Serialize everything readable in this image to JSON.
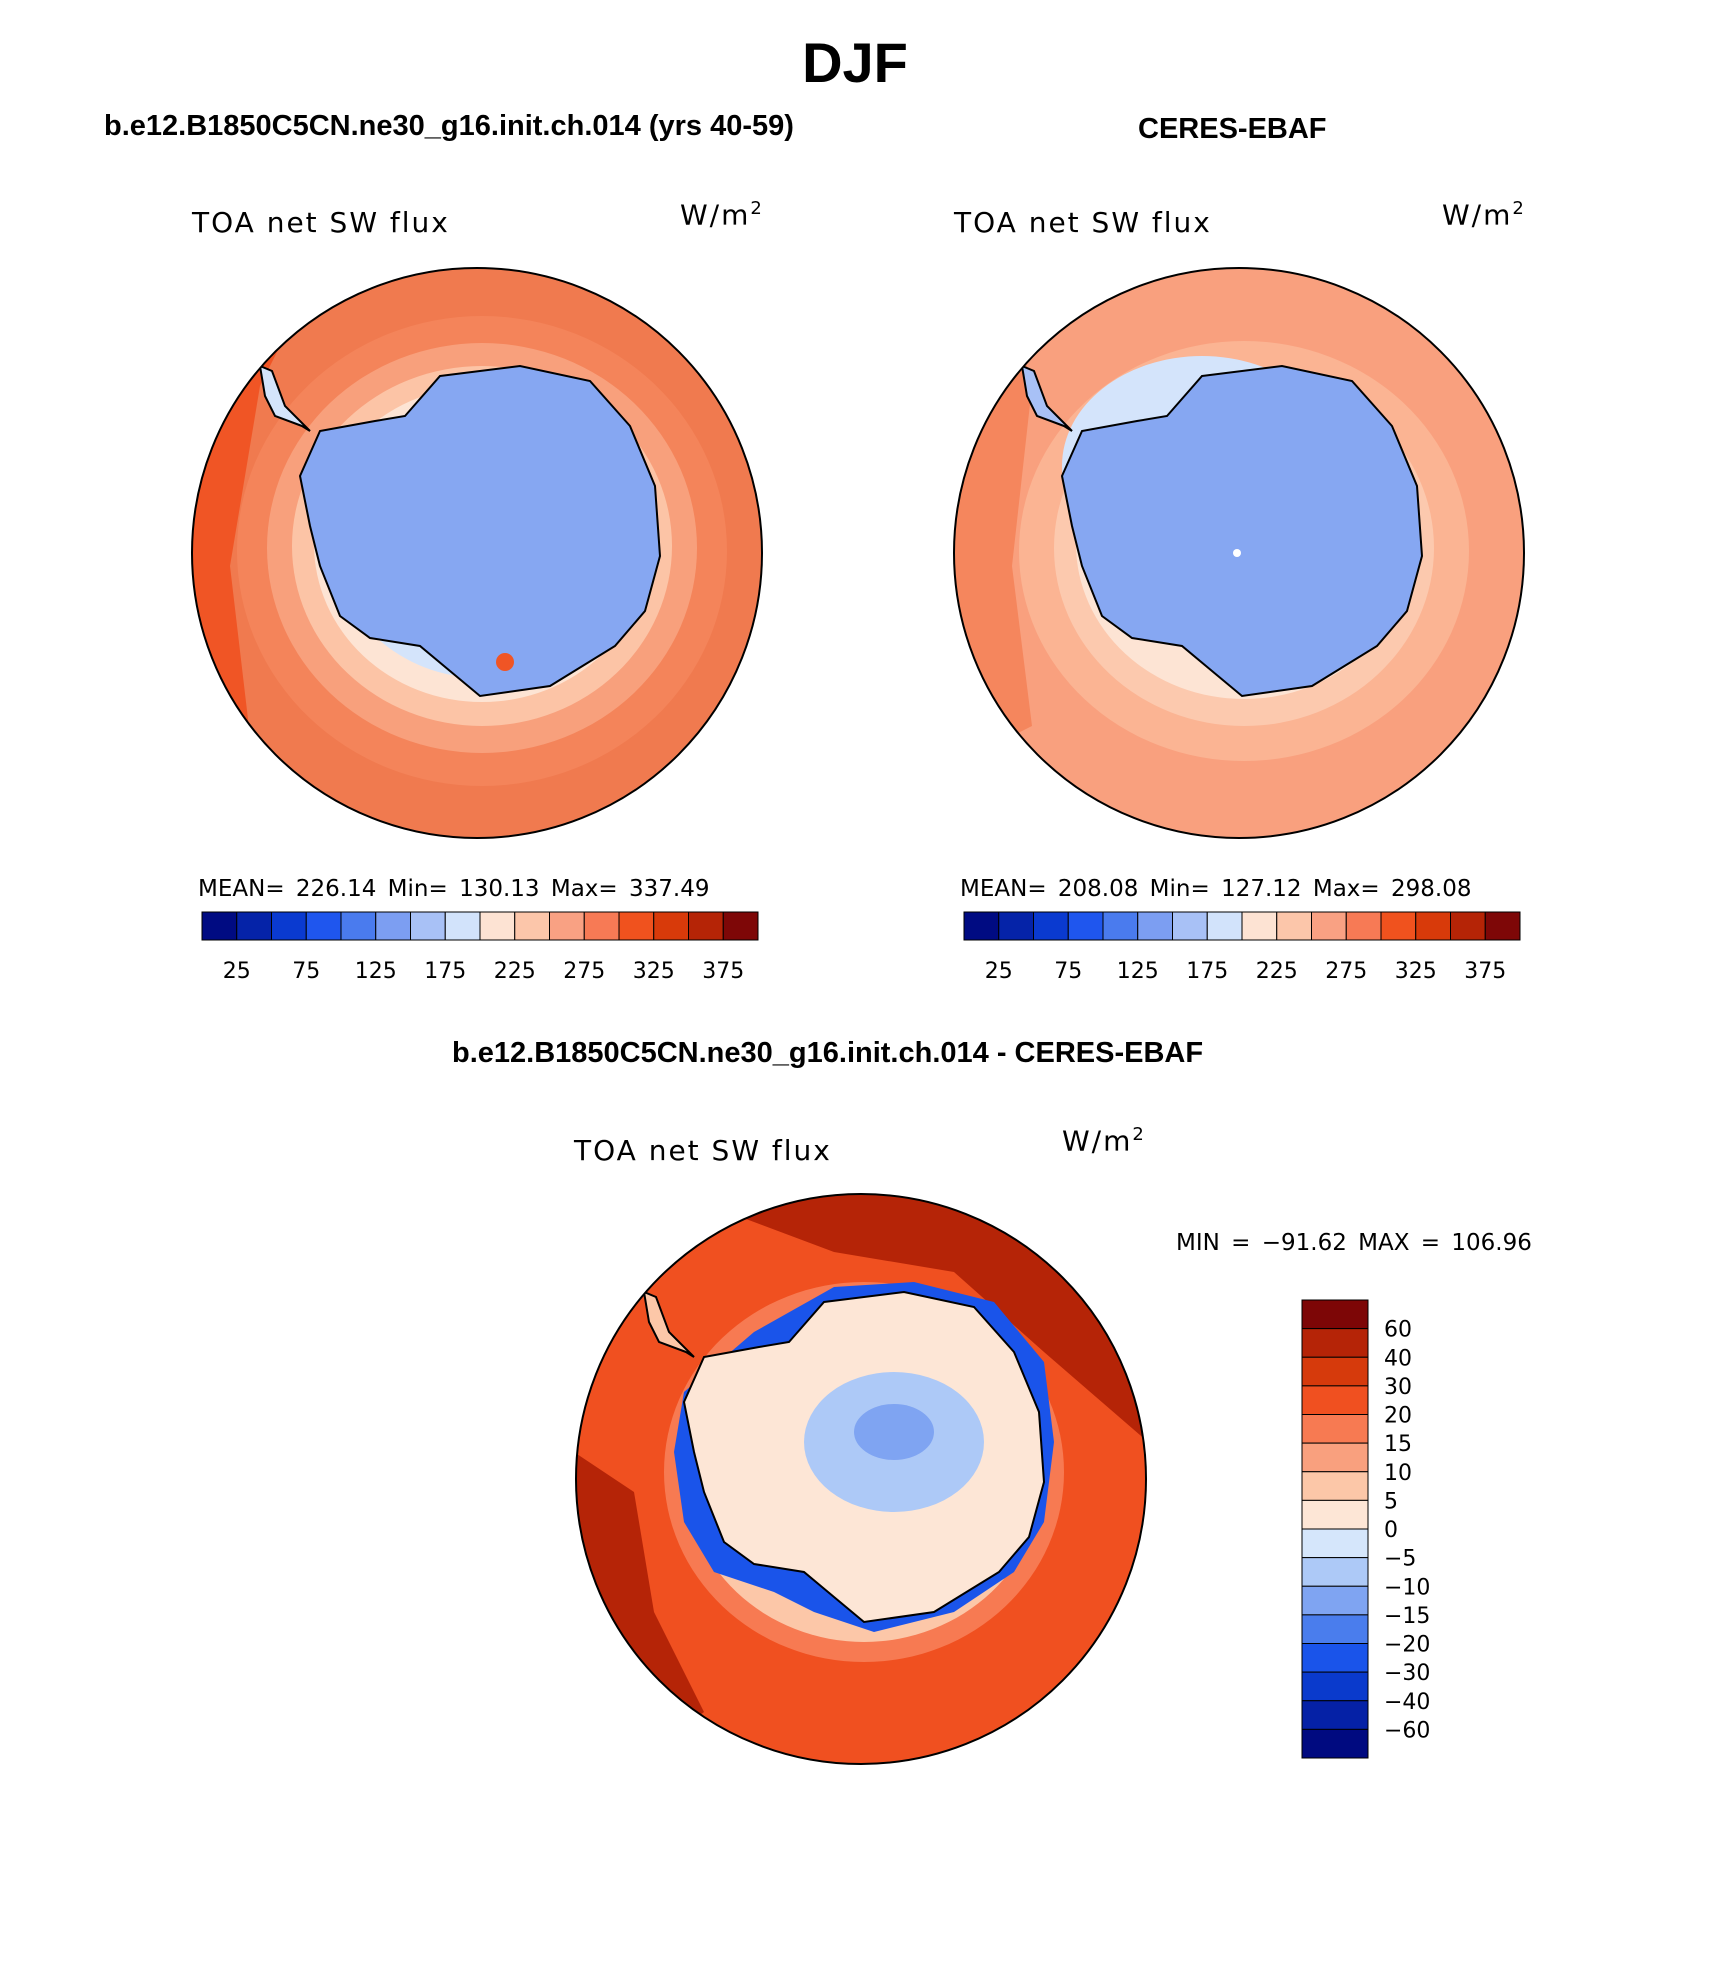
{
  "title": "DJF",
  "panels": {
    "model": {
      "title": "b.e12.B1850C5CN.ne30_g16.init.ch.014 (yrs 40-59)",
      "field": "TOA net SW flux",
      "unit": "W/m",
      "unit_exp": "2",
      "stats": "MEAN= 226.14   Min= 130.13   Max= 337.49"
    },
    "obs": {
      "title": "CERES-EBAF",
      "field": "TOA net SW flux",
      "unit": "W/m",
      "unit_exp": "2",
      "stats": "MEAN= 208.08   Min= 127.12   Max= 298.08"
    },
    "diff": {
      "title": "b.e12.B1850C5CN.ne30_g16.init.ch.014 - CERES-EBAF",
      "field": "TOA net SW flux",
      "unit": "W/m",
      "unit_exp": "2",
      "stats": "MIN = −91.62 MAX = 106.96"
    }
  },
  "abs_colorbar": {
    "colors": [
      "#000b82",
      "#0523a8",
      "#0a3ad0",
      "#1f56ee",
      "#4a7bee",
      "#7c9ef2",
      "#a8c1f6",
      "#d2e3fb",
      "#fde3d3",
      "#fcc6aa",
      "#f9a183",
      "#f77a55",
      "#f0521e",
      "#d83a0a",
      "#b52406",
      "#7e0707"
    ],
    "tick_labels": [
      "25",
      "75",
      "125",
      "175",
      "225",
      "275",
      "325",
      "375"
    ]
  },
  "diff_colorbar": {
    "colors": [
      "#000a80",
      "#0521a6",
      "#0a3acc",
      "#1a54ea",
      "#4a7ded",
      "#7fa4f2",
      "#adc9f7",
      "#d5e6fb",
      "#fde6d6",
      "#fcc7a8",
      "#f9a07e",
      "#f77a52",
      "#f05020",
      "#d63a0c",
      "#b52407",
      "#7d0606"
    ],
    "labels": [
      "60",
      "40",
      "30",
      "20",
      "15",
      "10",
      "5",
      "0",
      "−5",
      "−10",
      "−15",
      "−20",
      "−30",
      "−40",
      "−60"
    ]
  }
}
